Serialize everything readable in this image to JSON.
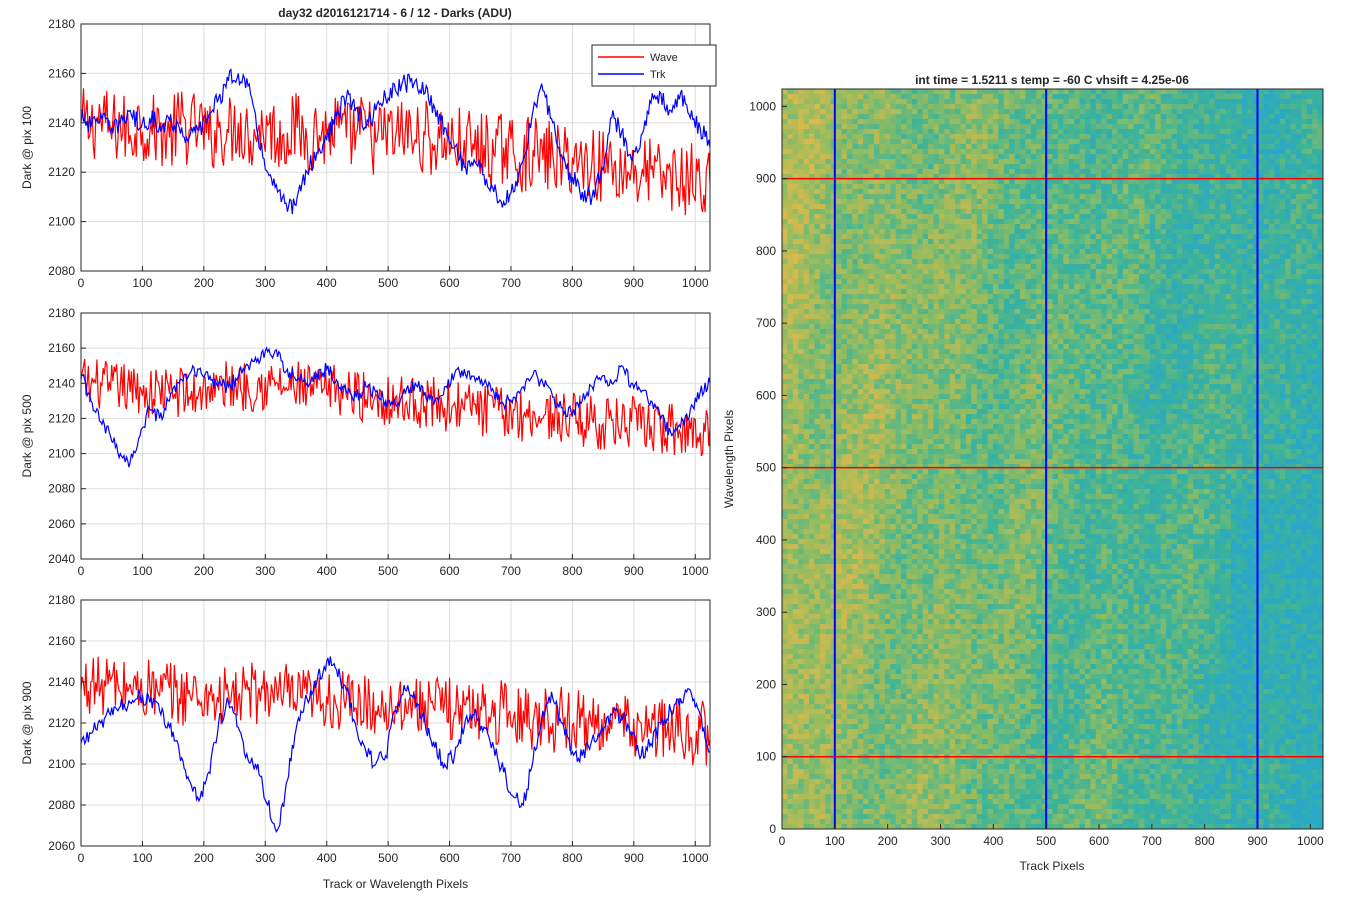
{
  "figure_title": "day32 d2016121714 - 6 / 12 - Darks (ADU)",
  "chart_data": [
    {
      "type": "line",
      "title": "day32 d2016121714 - 6 / 12 - Darks (ADU)",
      "xlabel": "",
      "ylabel": "Dark @ pix 100",
      "xlim": [
        0,
        1024
      ],
      "ylim": [
        2080,
        2180
      ],
      "xticks": [
        0,
        100,
        200,
        300,
        400,
        500,
        600,
        700,
        800,
        900,
        1000
      ],
      "yticks": [
        2080,
        2100,
        2120,
        2140,
        2160,
        2180
      ],
      "grid": true,
      "legend": "top-right",
      "series": [
        {
          "name": "Wave",
          "color": "#ff0000",
          "x": [
            0,
            16,
            32,
            48,
            64,
            80,
            96,
            112,
            128,
            144,
            160,
            176,
            192,
            208,
            224,
            240,
            256,
            272,
            288,
            304,
            320,
            336,
            352,
            368,
            384,
            400,
            416,
            432,
            448,
            464,
            480,
            496,
            512,
            528,
            544,
            560,
            576,
            592,
            608,
            624,
            640,
            656,
            672,
            688,
            704,
            720,
            736,
            752,
            768,
            784,
            800,
            816,
            832,
            848,
            864,
            880,
            896,
            912,
            928,
            944,
            960,
            976,
            992,
            1008,
            1024
          ],
          "y": [
            2140,
            2138,
            2142,
            2137,
            2139,
            2135,
            2141,
            2136,
            2138,
            2134,
            2140,
            2137,
            2139,
            2133,
            2138,
            2136,
            2140,
            2135,
            2137,
            2139,
            2134,
            2136,
            2138,
            2133,
            2137,
            2135,
            2139,
            2134,
            2136,
            2138,
            2132,
            2136,
            2134,
            2137,
            2133,
            2135,
            2131,
            2134,
            2130,
            2133,
            2129,
            2131,
            2127,
            2130,
            2128,
            2126,
            2129,
            2125,
            2127,
            2124,
            2126,
            2123,
            2125,
            2122,
            2124,
            2120,
            2122,
            2118,
            2121,
            2117,
            2119,
            2116,
            2118,
            2114,
            2115
          ]
        },
        {
          "name": "Trk",
          "color": "#0000ff",
          "x": [
            0,
            16,
            32,
            48,
            64,
            80,
            96,
            112,
            128,
            144,
            160,
            176,
            192,
            208,
            224,
            240,
            256,
            272,
            288,
            304,
            320,
            336,
            352,
            368,
            384,
            400,
            416,
            432,
            448,
            464,
            480,
            496,
            512,
            528,
            544,
            560,
            576,
            592,
            608,
            624,
            640,
            656,
            672,
            688,
            704,
            720,
            736,
            752,
            768,
            784,
            800,
            816,
            832,
            848,
            864,
            880,
            896,
            912,
            928,
            944,
            960,
            976,
            992,
            1008,
            1024
          ],
          "y": [
            2145,
            2138,
            2144,
            2136,
            2140,
            2145,
            2138,
            2142,
            2139,
            2141,
            2138,
            2134,
            2137,
            2143,
            2150,
            2157,
            2160,
            2155,
            2135,
            2120,
            2112,
            2104,
            2110,
            2120,
            2128,
            2133,
            2143,
            2150,
            2146,
            2138,
            2145,
            2150,
            2153,
            2156,
            2157,
            2152,
            2146,
            2138,
            2130,
            2122,
            2125,
            2119,
            2112,
            2108,
            2112,
            2125,
            2145,
            2153,
            2140,
            2125,
            2118,
            2112,
            2110,
            2122,
            2142,
            2136,
            2125,
            2135,
            2148,
            2152,
            2145,
            2152,
            2142,
            2138,
            2130
          ]
        }
      ]
    },
    {
      "type": "line",
      "title": "",
      "xlabel": "",
      "ylabel": "Dark @ pix 500",
      "xlim": [
        0,
        1024
      ],
      "ylim": [
        2040,
        2180
      ],
      "xticks": [
        0,
        100,
        200,
        300,
        400,
        500,
        600,
        700,
        800,
        900,
        1000
      ],
      "yticks": [
        2040,
        2060,
        2080,
        2100,
        2120,
        2140,
        2160,
        2180
      ],
      "grid": true,
      "series": [
        {
          "name": "Wave",
          "color": "#ff0000",
          "x": [
            0,
            16,
            32,
            48,
            64,
            80,
            96,
            112,
            128,
            144,
            160,
            176,
            192,
            208,
            224,
            240,
            256,
            272,
            288,
            304,
            320,
            336,
            352,
            368,
            384,
            400,
            416,
            432,
            448,
            464,
            480,
            496,
            512,
            528,
            544,
            560,
            576,
            592,
            608,
            624,
            640,
            656,
            672,
            688,
            704,
            720,
            736,
            752,
            768,
            784,
            800,
            816,
            832,
            848,
            864,
            880,
            896,
            912,
            928,
            944,
            960,
            976,
            992,
            1008,
            1024
          ],
          "y": [
            2142,
            2138,
            2140,
            2136,
            2139,
            2135,
            2138,
            2133,
            2137,
            2134,
            2136,
            2132,
            2135,
            2138,
            2136,
            2139,
            2140,
            2137,
            2141,
            2138,
            2140,
            2136,
            2139,
            2135,
            2137,
            2134,
            2138,
            2133,
            2135,
            2131,
            2134,
            2130,
            2132,
            2128,
            2131,
            2127,
            2130,
            2126,
            2129,
            2125,
            2128,
            2124,
            2126,
            2122,
            2125,
            2121,
            2124,
            2120,
            2123,
            2119,
            2121,
            2118,
            2120,
            2116,
            2119,
            2115,
            2118,
            2114,
            2116,
            2112,
            2115,
            2111,
            2114,
            2112,
            2115
          ]
        },
        {
          "name": "Trk",
          "color": "#0000ff",
          "x": [
            0,
            16,
            32,
            48,
            64,
            80,
            96,
            112,
            128,
            144,
            160,
            176,
            192,
            208,
            224,
            240,
            256,
            272,
            288,
            304,
            320,
            336,
            352,
            368,
            384,
            400,
            416,
            432,
            448,
            464,
            480,
            496,
            512,
            528,
            544,
            560,
            576,
            592,
            608,
            624,
            640,
            656,
            672,
            688,
            704,
            720,
            736,
            752,
            768,
            784,
            800,
            816,
            832,
            848,
            864,
            880,
            896,
            912,
            928,
            944,
            960,
            976,
            992,
            1008,
            1024
          ],
          "y": [
            2145,
            2130,
            2118,
            2110,
            2100,
            2095,
            2110,
            2125,
            2120,
            2130,
            2140,
            2145,
            2148,
            2142,
            2140,
            2138,
            2144,
            2150,
            2154,
            2158,
            2155,
            2148,
            2142,
            2140,
            2145,
            2148,
            2142,
            2135,
            2132,
            2138,
            2135,
            2130,
            2128,
            2134,
            2140,
            2135,
            2130,
            2138,
            2145,
            2148,
            2144,
            2140,
            2135,
            2128,
            2132,
            2138,
            2145,
            2140,
            2132,
            2126,
            2122,
            2130,
            2138,
            2144,
            2140,
            2150,
            2140,
            2135,
            2130,
            2120,
            2112,
            2115,
            2125,
            2135,
            2140
          ]
        }
      ]
    },
    {
      "type": "line",
      "title": "",
      "xlabel": "Track or Wavelength Pixels",
      "ylabel": "Dark @ pix 900",
      "xlim": [
        0,
        1024
      ],
      "ylim": [
        2060,
        2180
      ],
      "xticks": [
        0,
        100,
        200,
        300,
        400,
        500,
        600,
        700,
        800,
        900,
        1000
      ],
      "yticks": [
        2060,
        2080,
        2100,
        2120,
        2140,
        2160,
        2180
      ],
      "grid": true,
      "series": [
        {
          "name": "Wave",
          "color": "#ff0000",
          "x": [
            0,
            16,
            32,
            48,
            64,
            80,
            96,
            112,
            128,
            144,
            160,
            176,
            192,
            208,
            224,
            240,
            256,
            272,
            288,
            304,
            320,
            336,
            352,
            368,
            384,
            400,
            416,
            432,
            448,
            464,
            480,
            496,
            512,
            528,
            544,
            560,
            576,
            592,
            608,
            624,
            640,
            656,
            672,
            688,
            704,
            720,
            736,
            752,
            768,
            784,
            800,
            816,
            832,
            848,
            864,
            880,
            896,
            912,
            928,
            944,
            960,
            976,
            992,
            1008,
            1024
          ],
          "y": [
            2136,
            2140,
            2137,
            2141,
            2135,
            2139,
            2134,
            2138,
            2133,
            2137,
            2132,
            2136,
            2131,
            2135,
            2130,
            2134,
            2132,
            2136,
            2133,
            2137,
            2131,
            2135,
            2130,
            2134,
            2129,
            2133,
            2128,
            2132,
            2127,
            2131,
            2126,
            2130,
            2128,
            2132,
            2127,
            2131,
            2126,
            2130,
            2125,
            2129,
            2124,
            2128,
            2123,
            2127,
            2122,
            2126,
            2121,
            2125,
            2120,
            2124,
            2119,
            2123,
            2118,
            2122,
            2117,
            2121,
            2116,
            2120,
            2115,
            2119,
            2114,
            2118,
            2113,
            2117,
            2112
          ]
        },
        {
          "name": "Trk",
          "color": "#0000ff",
          "x": [
            0,
            16,
            32,
            48,
            64,
            80,
            96,
            112,
            128,
            144,
            160,
            176,
            192,
            208,
            224,
            240,
            256,
            272,
            288,
            304,
            320,
            336,
            352,
            368,
            384,
            400,
            416,
            432,
            448,
            464,
            480,
            496,
            512,
            528,
            544,
            560,
            576,
            592,
            608,
            624,
            640,
            656,
            672,
            688,
            704,
            720,
            736,
            752,
            768,
            784,
            800,
            816,
            832,
            848,
            864,
            880,
            896,
            912,
            928,
            944,
            960,
            976,
            992,
            1008,
            1024
          ],
          "y": [
            2110,
            2115,
            2120,
            2124,
            2128,
            2130,
            2134,
            2130,
            2126,
            2118,
            2106,
            2092,
            2082,
            2096,
            2120,
            2130,
            2118,
            2102,
            2100,
            2080,
            2068,
            2092,
            2120,
            2132,
            2140,
            2150,
            2146,
            2136,
            2118,
            2106,
            2100,
            2104,
            2126,
            2136,
            2132,
            2120,
            2108,
            2100,
            2104,
            2118,
            2124,
            2118,
            2108,
            2096,
            2084,
            2080,
            2102,
            2126,
            2132,
            2120,
            2106,
            2104,
            2112,
            2118,
            2124,
            2124,
            2114,
            2104,
            2110,
            2120,
            2126,
            2132,
            2136,
            2124,
            2106
          ]
        }
      ]
    },
    {
      "type": "heatmap",
      "title": "int time = 1.5211 s    temp = -60 C    vhsift = 4.25e-06",
      "xlabel": "Track Pixels",
      "ylabel": "Wavelength Pixels",
      "xlim": [
        0,
        1024
      ],
      "ylim": [
        0,
        1024
      ],
      "xticks": [
        0,
        100,
        200,
        300,
        400,
        500,
        600,
        700,
        800,
        900,
        1000
      ],
      "yticks": [
        0,
        100,
        200,
        300,
        400,
        500,
        600,
        700,
        800,
        900,
        1000
      ],
      "grid": false,
      "colormap": [
        "#2aa7c7",
        "#3cb49a",
        "#8fbc62",
        "#d8b94c"
      ],
      "vertical_markers": {
        "color": "#0000ff",
        "x": [
          100,
          500,
          900
        ]
      },
      "horizontal_markers": {
        "color": "#ff0000",
        "y": [
          100,
          500,
          900
        ]
      }
    }
  ]
}
